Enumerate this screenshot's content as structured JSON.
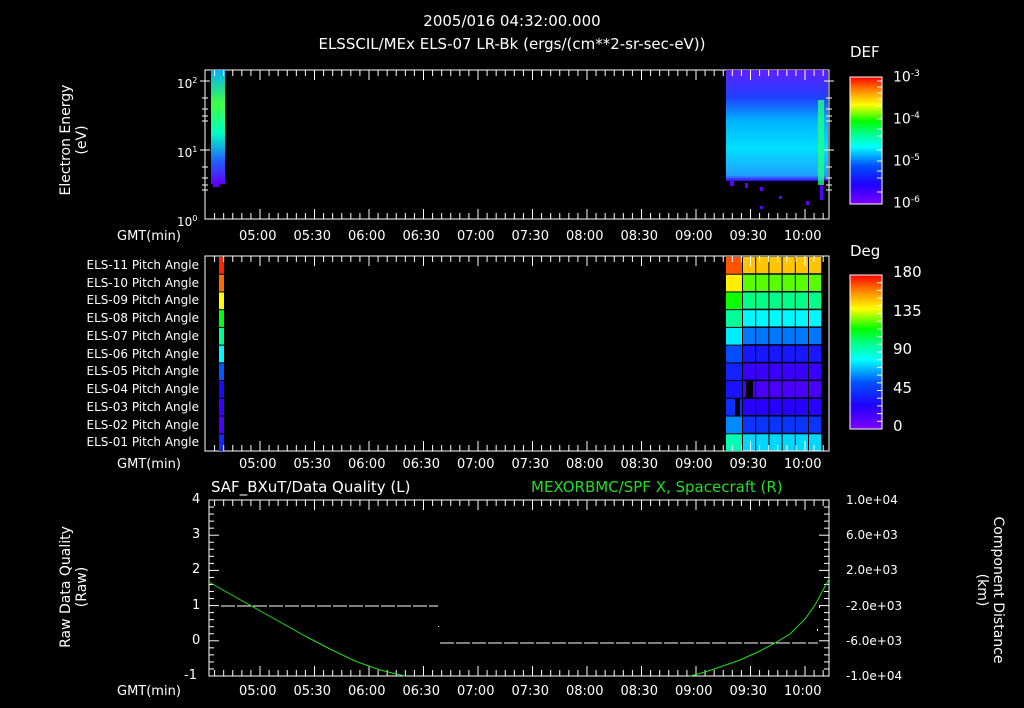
{
  "header": {
    "timestamp": "2005/016 04:32:00.000",
    "panel1_title": "ELSSCIL/MEx ELS-07 LR-Bk  (ergs/(cm**2-sr-sec-eV))"
  },
  "time_axis": {
    "label": "GMT(min)",
    "ticks": [
      "05:00",
      "05:30",
      "06:00",
      "06:30",
      "07:00",
      "07:30",
      "08:00",
      "08:30",
      "09:00",
      "09:30",
      "10:00"
    ]
  },
  "panel1": {
    "ylabel_line1": "Electron Energy",
    "ylabel_line2": "(eV)",
    "yticks": [
      "10^2",
      "10^1",
      "10^0"
    ],
    "colorbar": {
      "title": "DEF",
      "labels": [
        "10^-3",
        "10^-4",
        "10^-5",
        "10^-6"
      ]
    }
  },
  "panel2": {
    "rows": [
      "ELS-11 Pitch Angle",
      "ELS-10 Pitch Angle",
      "ELS-09 Pitch Angle",
      "ELS-08 Pitch Angle",
      "ELS-07 Pitch Angle",
      "ELS-06 Pitch Angle",
      "ELS-05 Pitch Angle",
      "ELS-04 Pitch Angle",
      "ELS-03 Pitch Angle",
      "ELS-02 Pitch Angle",
      "ELS-01 Pitch Angle"
    ],
    "colorbar": {
      "title": "Deg",
      "labels": [
        "180",
        "135",
        "90",
        "45",
        "0"
      ]
    }
  },
  "panel3": {
    "left_title": "SAF_BXuT/Data Quality (L)",
    "right_title": "MEXORBMC/SPF X, Spacecraft (R)",
    "ylabel_left_line1": "Raw Data Quality",
    "ylabel_left_line2": "(Raw)",
    "ylabel_right_line1": "Component Distance",
    "ylabel_right_line2": "(km)",
    "yticks_left": [
      "4",
      "3",
      "2",
      "1",
      "0",
      "-1"
    ],
    "yticks_right": [
      "1.0e+04",
      "6.0e+03",
      "2.0e+03",
      "-2.0e+03",
      "-6.0e+03",
      "-1.0e+04"
    ]
  },
  "colors": {
    "background": "#000000",
    "axis": "#ffffff",
    "right_series": "#22dd22"
  },
  "chart_data": [
    {
      "type": "heatmap",
      "title": "ELSSCIL/MEx ELS-07 LR-Bk (ergs/(cm**2-sr-sec-eV))",
      "xlabel": "GMT(min)",
      "ylabel": "Electron Energy (eV)",
      "yscale": "log",
      "ylim": [
        1,
        150
      ],
      "x_range": [
        "04:32",
        "10:10"
      ],
      "colorbar": {
        "label": "DEF",
        "scale": "log",
        "range": [
          1e-06,
          0.001
        ]
      },
      "data_intervals": [
        {
          "start": "04:36",
          "end": "04:39",
          "energy_range_eV": [
            3.5,
            140
          ],
          "peak_DEF": 0.0001
        },
        {
          "start": "09:15",
          "end": "10:08",
          "energy_range_eV": [
            3.5,
            140
          ],
          "typical_DEF": 1e-05
        }
      ]
    },
    {
      "type": "heatmap",
      "title": "ELS Pitch Angles",
      "xlabel": "GMT(min)",
      "categories": [
        "ELS-11",
        "ELS-10",
        "ELS-09",
        "ELS-08",
        "ELS-07",
        "ELS-06",
        "ELS-05",
        "ELS-04",
        "ELS-03",
        "ELS-02",
        "ELS-01"
      ],
      "colorbar": {
        "label": "Deg",
        "range": [
          0,
          180
        ]
      },
      "interval_0436": [
        175,
        165,
        140,
        115,
        100,
        80,
        55,
        30,
        20,
        15,
        40
      ],
      "interval_0930_1008": [
        150,
        125,
        100,
        80,
        60,
        35,
        20,
        15,
        25,
        45,
        75
      ]
    },
    {
      "type": "line",
      "title_left": "SAF_BXuT/Data Quality (L)",
      "title_right": "MEXORBMC/SPF X, Spacecraft (R)",
      "xlabel": "GMT(min)",
      "ylabel_left": "Raw Data Quality (Raw)",
      "ylabel_right": "Component Distance (km)",
      "ylim_left": [
        -1,
        4
      ],
      "ylim_right": [
        -10000,
        10000
      ],
      "series": [
        {
          "name": "Data Quality",
          "axis": "left",
          "color": "#ffffff",
          "x": [
            "04:38",
            "06:40",
            "06:42",
            "10:05"
          ],
          "y": [
            1,
            1,
            0,
            0
          ]
        },
        {
          "name": "SPF X",
          "axis": "right",
          "color": "#22dd22",
          "x": [
            "04:32",
            "05:00",
            "05:30",
            "06:00",
            "06:25",
            "09:00",
            "09:30",
            "10:00",
            "10:10"
          ],
          "y": [
            3600,
            1000,
            -2500,
            -6200,
            -10000,
            -10000,
            -5500,
            500,
            3000
          ]
        }
      ]
    }
  ]
}
